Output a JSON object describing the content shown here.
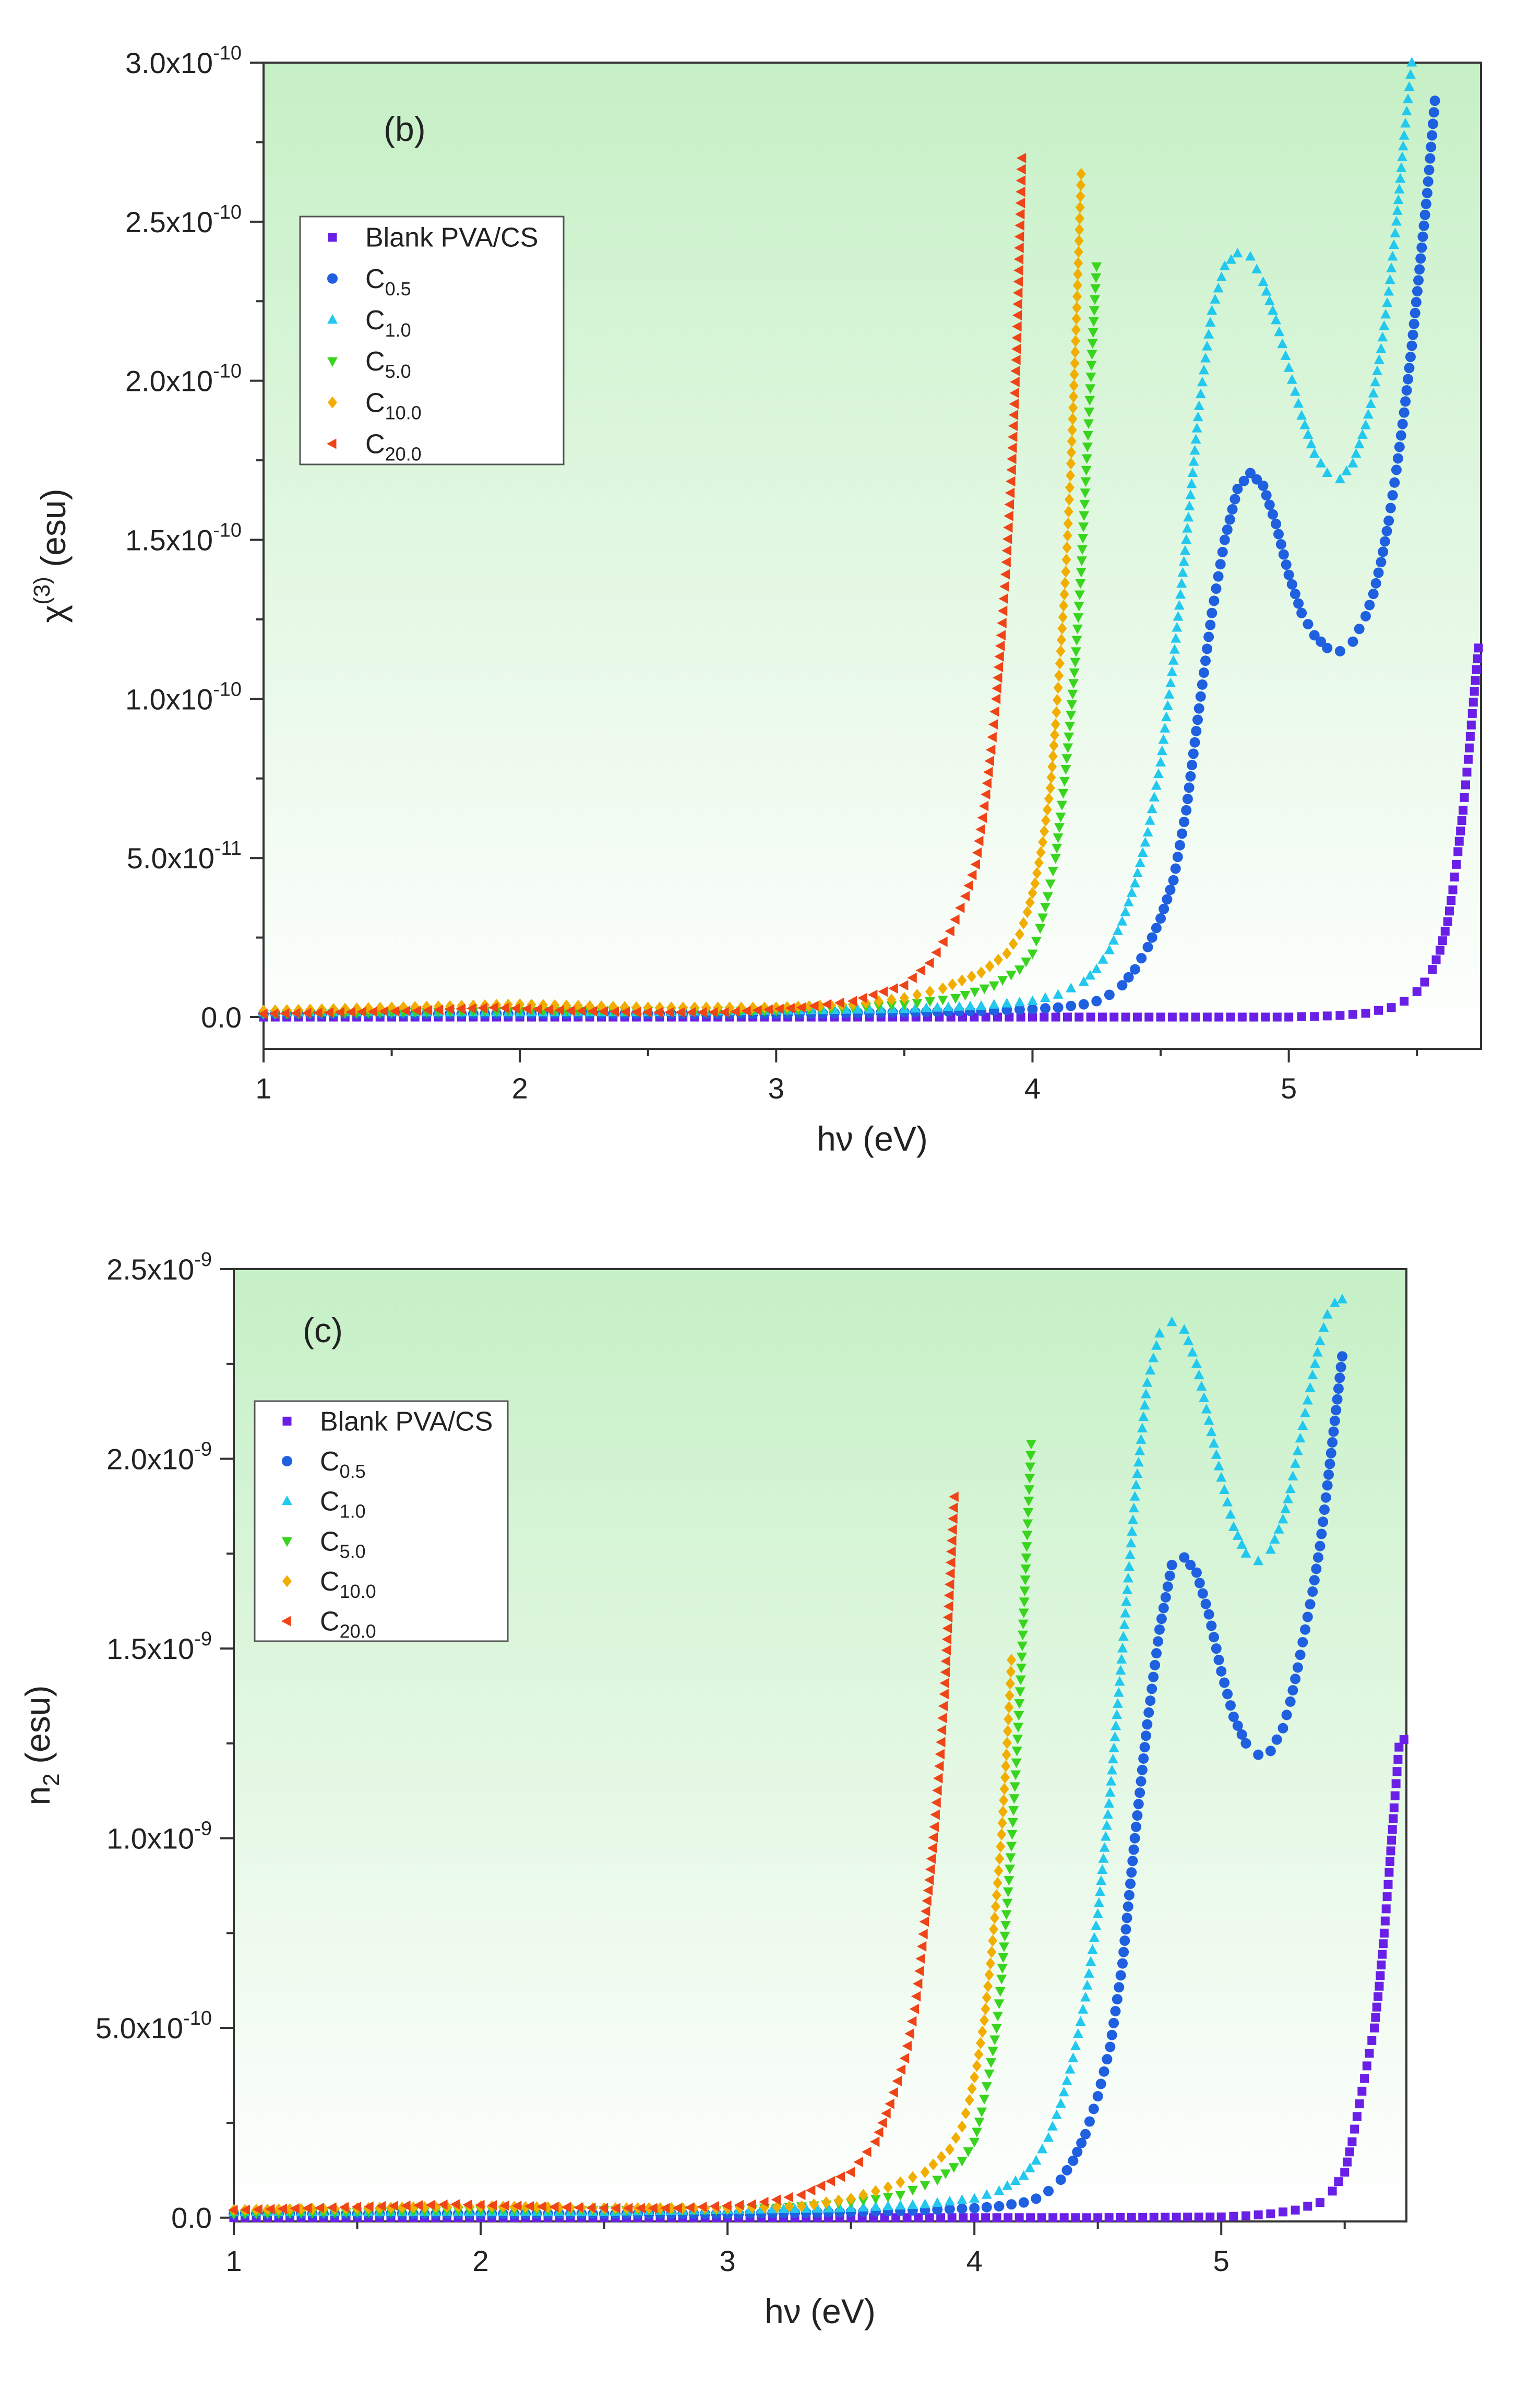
{
  "series_styles": [
    {
      "key": "blank",
      "marker": "square",
      "color": "#6a1fe6"
    },
    {
      "key": "c05",
      "marker": "circle",
      "color": "#1f60e0"
    },
    {
      "key": "c10",
      "marker": "triangle-up",
      "color": "#22c8ee"
    },
    {
      "key": "c50",
      "marker": "triangle-down",
      "color": "#38d41e"
    },
    {
      "key": "c100",
      "marker": "diamond",
      "color": "#f2ae00"
    },
    {
      "key": "c200",
      "marker": "triangle-left",
      "color": "#ee4418"
    }
  ],
  "legend": {
    "blank": {
      "main": "Blank PVA/CS",
      "sub": ""
    },
    "c05": {
      "main": "C",
      "sub": "0.5"
    },
    "c10": {
      "main": "C",
      "sub": "1.0"
    },
    "c50": {
      "main": "C",
      "sub": "5.0"
    },
    "c100": {
      "main": "C",
      "sub": "10.0"
    },
    "c200": {
      "main": "C",
      "sub": "20.0"
    }
  },
  "background": {
    "top": "#c6f0c6",
    "bottom": "#ffffff",
    "frame": "#333333"
  },
  "chart_data": [
    {
      "type": "scatter",
      "panel": "(b)",
      "ylabel": {
        "main": "χ",
        "sup": "(3)",
        "tail": " (esu)"
      },
      "xlabel": "hν (eV)",
      "xlim": [
        1,
        5.75
      ],
      "ylim": [
        -1e-11,
        3e-10
      ],
      "xticks": [
        "1",
        "2",
        "3",
        "4",
        "5"
      ],
      "xtick_values": [
        1,
        2,
        3,
        4,
        5
      ],
      "yticks": [
        {
          "value": 0,
          "mant": "0.0",
          "exp": ""
        },
        {
          "value": 5e-11,
          "mant": "5.0x10",
          "exp": "-11"
        },
        {
          "value": 1e-10,
          "mant": "1.0x10",
          "exp": "-10"
        },
        {
          "value": 1.5e-10,
          "mant": "1.5x10",
          "exp": "-10"
        },
        {
          "value": 2e-10,
          "mant": "2.0x10",
          "exp": "-10"
        },
        {
          "value": 2.5e-10,
          "mant": "2.5x10",
          "exp": "-10"
        },
        {
          "value": 3e-10,
          "mant": "3.0x10",
          "exp": "-10"
        }
      ],
      "series": [
        {
          "key": "blank",
          "x": [
            1.0,
            1.5,
            2.0,
            2.5,
            3.0,
            3.5,
            4.0,
            4.5,
            5.0,
            5.1,
            5.2,
            5.3,
            5.4,
            5.45,
            5.5,
            5.53,
            5.56,
            5.59,
            5.62,
            5.64,
            5.66,
            5.68,
            5.7,
            5.72,
            5.74
          ],
          "y": [
            0,
            0,
            0,
            0,
            0,
            0,
            0,
            0,
            0,
            2e-13,
            5e-13,
            1.2e-12,
            3e-12,
            5e-12,
            8e-12,
            1.1e-11,
            1.5e-11,
            2.1e-11,
            3e-11,
            4e-11,
            5.2e-11,
            6.5e-11,
            8.1e-11,
            9.9e-11,
            1.16e-10
          ]
        },
        {
          "key": "c05",
          "x": [
            1.0,
            1.5,
            2.0,
            2.5,
            3.0,
            3.5,
            3.8,
            4.0,
            4.1,
            4.2,
            4.25,
            4.3,
            4.35,
            4.4,
            4.45,
            4.5,
            4.55,
            4.6,
            4.65,
            4.7,
            4.75,
            4.8,
            4.85,
            4.9,
            4.95,
            5.0,
            5.05,
            5.1,
            5.15,
            5.2,
            5.25,
            5.3,
            5.33,
            5.36,
            5.39,
            5.42,
            5.45,
            5.48,
            5.51,
            5.54,
            5.57
          ],
          "y": [
            1e-12,
            1e-12,
            1e-12,
            1e-12,
            1e-12,
            1.5e-12,
            2e-12,
            2.5e-12,
            3e-12,
            4e-12,
            5e-12,
            7e-12,
            1e-11,
            1.5e-11,
            2.2e-11,
            3.1e-11,
            4.3e-11,
            6.5e-11,
            9.7e-11,
            1.27e-10,
            1.5e-10,
            1.66e-10,
            1.71e-10,
            1.67e-10,
            1.55e-10,
            1.39e-10,
            1.27e-10,
            1.2e-10,
            1.16e-10,
            1.15e-10,
            1.18e-10,
            1.26e-10,
            1.33e-10,
            1.43e-10,
            1.56e-10,
            1.72e-10,
            1.9e-10,
            2.11e-10,
            2.35e-10,
            2.59e-10,
            2.88e-10
          ]
        },
        {
          "key": "c10",
          "x": [
            1.0,
            1.5,
            2.0,
            2.5,
            3.0,
            3.5,
            3.8,
            4.0,
            4.1,
            4.2,
            4.25,
            4.3,
            4.35,
            4.4,
            4.45,
            4.5,
            4.55,
            4.6,
            4.65,
            4.7,
            4.75,
            4.8,
            4.85,
            4.9,
            4.95,
            5.0,
            5.05,
            5.1,
            5.15,
            5.2,
            5.25,
            5.3,
            5.33,
            5.36,
            5.39,
            5.42,
            5.45,
            5.48
          ],
          "y": [
            1.5e-12,
            1.5e-12,
            1.5e-12,
            1.5e-12,
            2e-12,
            2.5e-12,
            3.5e-12,
            5e-12,
            7e-12,
            1.1e-11,
            1.5e-11,
            2.1e-11,
            3e-11,
            4.2e-11,
            5.8e-11,
            8e-11,
            1.12e-10,
            1.5e-10,
            1.92e-10,
            2.22e-10,
            2.36e-10,
            2.4e-10,
            2.39e-10,
            2.31e-10,
            2.19e-10,
            2.04e-10,
            1.89e-10,
            1.77e-10,
            1.71e-10,
            1.69e-10,
            1.74e-10,
            1.86e-10,
            1.96e-10,
            2.1e-10,
            2.28e-10,
            2.5e-10,
            2.77e-10,
            3e-10
          ]
        },
        {
          "key": "c50",
          "x": [
            1.0,
            1.5,
            2.0,
            2.5,
            3.0,
            3.3,
            3.5,
            3.7,
            3.85,
            3.95,
            4.0,
            4.03,
            4.06,
            4.09,
            4.11,
            4.13,
            4.15,
            4.17,
            4.19,
            4.21,
            4.23,
            4.25
          ],
          "y": [
            1e-12,
            1.5e-12,
            2e-12,
            2e-12,
            2e-12,
            3e-12,
            4e-12,
            6e-12,
            1e-11,
            1.5e-11,
            2e-11,
            2.8e-11,
            3.8e-11,
            5e-11,
            6.3e-11,
            7.8e-11,
            9.5e-11,
            1.15e-10,
            1.4e-10,
            1.72e-10,
            2.05e-10,
            2.36e-10
          ]
        },
        {
          "key": "c100",
          "x": [
            1.0,
            1.5,
            2.0,
            2.5,
            3.0,
            3.3,
            3.5,
            3.65,
            3.8,
            3.9,
            3.95,
            3.98,
            4.01,
            4.04,
            4.07,
            4.09,
            4.11,
            4.13,
            4.15,
            4.17,
            4.19
          ],
          "y": [
            2e-12,
            3e-12,
            4e-12,
            3e-12,
            3e-12,
            4e-12,
            6e-12,
            9e-12,
            1.4e-11,
            2e-11,
            2.6e-11,
            3.3e-11,
            4.2e-11,
            5.5e-11,
            7.2e-11,
            9.2e-11,
            1.15e-10,
            1.4e-10,
            1.74e-10,
            2.16e-10,
            2.65e-10
          ]
        },
        {
          "key": "c200",
          "x": [
            1.0,
            1.3,
            1.6,
            1.9,
            2.2,
            2.5,
            2.8,
            3.1,
            3.3,
            3.5,
            3.6,
            3.68,
            3.74,
            3.78,
            3.8,
            3.82,
            3.84,
            3.86,
            3.88,
            3.9,
            3.92,
            3.94,
            3.96
          ],
          "y": [
            1e-12,
            1.5e-12,
            2e-12,
            3e-12,
            2e-12,
            1.5e-12,
            1.5e-12,
            3e-12,
            5e-12,
            1e-11,
            1.7e-11,
            2.7e-11,
            3.8e-11,
            4.8e-11,
            5.9e-11,
            7e-11,
            8.4e-11,
            1e-10,
            1.2e-10,
            1.43e-10,
            1.72e-10,
            2.1e-10,
            2.7e-10
          ]
        }
      ]
    },
    {
      "type": "scatter",
      "panel": "(c)",
      "ylabel": {
        "main": "n",
        "sub": "2",
        "tail": " (esu)"
      },
      "xlabel": "hν (eV)",
      "xlim": [
        1,
        5.75
      ],
      "ylim": [
        -1e-11,
        2.5e-09
      ],
      "xticks": [
        "1",
        "2",
        "3",
        "4",
        "5"
      ],
      "xtick_values": [
        1,
        2,
        3,
        4,
        5
      ],
      "yticks": [
        {
          "value": 0,
          "mant": "0.0",
          "exp": ""
        },
        {
          "value": 5e-10,
          "mant": "5.0x10",
          "exp": "-10"
        },
        {
          "value": 1e-09,
          "mant": "1.0x10",
          "exp": "-9"
        },
        {
          "value": 1.5e-09,
          "mant": "1.5x10",
          "exp": "-9"
        },
        {
          "value": 2e-09,
          "mant": "2.0x10",
          "exp": "-9"
        },
        {
          "value": 2.5e-09,
          "mant": "2.5x10",
          "exp": "-9"
        }
      ],
      "series": [
        {
          "key": "blank",
          "x": [
            1.0,
            1.5,
            2.0,
            2.5,
            3.0,
            3.5,
            4.0,
            4.5,
            5.0,
            5.1,
            5.2,
            5.3,
            5.4,
            5.45,
            5.5,
            5.53,
            5.56,
            5.59,
            5.62,
            5.64,
            5.66,
            5.68,
            5.7,
            5.72,
            5.74
          ],
          "y": [
            0,
            0,
            0,
            0,
            0,
            0,
            0,
            0,
            2e-12,
            5e-12,
            1e-11,
            2e-11,
            4e-11,
            7e-11,
            1.2e-10,
            2e-10,
            3e-10,
            4e-10,
            5e-10,
            6.1e-10,
            7.5e-10,
            9.1e-10,
            1.08e-09,
            1.24e-09,
            1.26e-09
          ]
        },
        {
          "key": "c05",
          "x": [
            1.0,
            1.5,
            2.0,
            2.5,
            3.0,
            3.5,
            3.8,
            4.0,
            4.1,
            4.2,
            4.25,
            4.3,
            4.35,
            4.4,
            4.45,
            4.5,
            4.55,
            4.6,
            4.65,
            4.7,
            4.75,
            4.8,
            4.85,
            4.9,
            4.95,
            5.0,
            5.05,
            5.1,
            5.15,
            5.2,
            5.25,
            5.28,
            5.31,
            5.34,
            5.37,
            5.4,
            5.43,
            5.46,
            5.49
          ],
          "y": [
            1e-11,
            1e-11,
            1e-11,
            1e-11,
            1e-11,
            1.5e-11,
            2e-11,
            2.5e-11,
            3e-11,
            4e-11,
            5e-11,
            7e-11,
            1e-10,
            1.5e-10,
            2.2e-10,
            3.2e-10,
            4.5e-10,
            6.7e-10,
            1e-09,
            1.3e-09,
            1.55e-09,
            1.72e-09,
            1.74e-09,
            1.7e-09,
            1.59e-09,
            1.44e-09,
            1.32e-09,
            1.25e-09,
            1.22e-09,
            1.23e-09,
            1.29e-09,
            1.36e-09,
            1.45e-09,
            1.55e-09,
            1.65e-09,
            1.77e-09,
            1.93e-09,
            2.1e-09,
            2.27e-09
          ]
        },
        {
          "key": "c10",
          "x": [
            1.0,
            1.5,
            2.0,
            2.5,
            3.0,
            3.5,
            3.8,
            4.0,
            4.1,
            4.2,
            4.25,
            4.3,
            4.35,
            4.4,
            4.45,
            4.5,
            4.55,
            4.6,
            4.65,
            4.7,
            4.75,
            4.8,
            4.85,
            4.9,
            4.95,
            5.0,
            5.05,
            5.1,
            5.15,
            5.2,
            5.25,
            5.28,
            5.31,
            5.34,
            5.37,
            5.4,
            5.43,
            5.46,
            5.49
          ],
          "y": [
            1.5e-11,
            1.5e-11,
            1.5e-11,
            1.5e-11,
            2e-11,
            2.5e-11,
            3.5e-11,
            5e-11,
            7e-11,
            1.1e-10,
            1.5e-10,
            2.1e-10,
            3e-10,
            4.2e-10,
            5.8e-10,
            8e-10,
            1.12e-09,
            1.5e-09,
            1.9e-09,
            2.2e-09,
            2.33e-09,
            2.36e-09,
            2.34e-09,
            2.25e-09,
            2.1e-09,
            1.95e-09,
            1.82e-09,
            1.75e-09,
            1.73e-09,
            1.76e-09,
            1.84e-09,
            1.92e-09,
            2.02e-09,
            2.12e-09,
            2.22e-09,
            2.31e-09,
            2.38e-09,
            2.41e-09,
            2.42e-09
          ]
        },
        {
          "key": "c50",
          "x": [
            1.0,
            1.5,
            2.0,
            2.5,
            3.0,
            3.3,
            3.5,
            3.7,
            3.85,
            3.95,
            4.0,
            4.03,
            4.06,
            4.09,
            4.11,
            4.13,
            4.15,
            4.17,
            4.19,
            4.21,
            4.23
          ],
          "y": [
            1e-11,
            1.5e-11,
            2e-11,
            2e-11,
            2e-11,
            3e-11,
            4e-11,
            6e-11,
            1e-10,
            1.5e-10,
            2e-10,
            2.8e-10,
            3.8e-10,
            5e-10,
            6.3e-10,
            8e-10,
            9.8e-10,
            1.2e-09,
            1.45e-09,
            1.74e-09,
            2.04e-09
          ]
        },
        {
          "key": "c100",
          "x": [
            1.0,
            1.5,
            2.0,
            2.5,
            3.0,
            3.3,
            3.5,
            3.65,
            3.8,
            3.9,
            3.95,
            3.98,
            4.01,
            4.04,
            4.07,
            4.09,
            4.11,
            4.13,
            4.15
          ],
          "y": [
            2e-11,
            2.5e-11,
            3e-11,
            2.5e-11,
            2.5e-11,
            3e-11,
            5e-11,
            8e-11,
            1.2e-10,
            1.8e-10,
            2.4e-10,
            3.1e-10,
            4e-10,
            5.2e-10,
            7e-10,
            8.5e-10,
            1.01e-09,
            1.22e-09,
            1.47e-09
          ]
        },
        {
          "key": "c200",
          "x": [
            1.0,
            1.3,
            1.6,
            1.9,
            2.2,
            2.5,
            2.8,
            3.1,
            3.3,
            3.5,
            3.6,
            3.66,
            3.72,
            3.76,
            3.78,
            3.8,
            3.82,
            3.84,
            3.86,
            3.88,
            3.9,
            3.92
          ],
          "y": [
            2e-11,
            2.5e-11,
            3e-11,
            3.5e-11,
            3e-11,
            2.5e-11,
            2.5e-11,
            3.5e-11,
            6e-11,
            1.2e-10,
            2e-10,
            3e-10,
            4.2e-10,
            5.5e-10,
            6.5e-10,
            7.8e-10,
            8.9e-10,
            1.03e-09,
            1.19e-09,
            1.38e-09,
            1.64e-09,
            1.9e-09
          ]
        }
      ]
    }
  ]
}
